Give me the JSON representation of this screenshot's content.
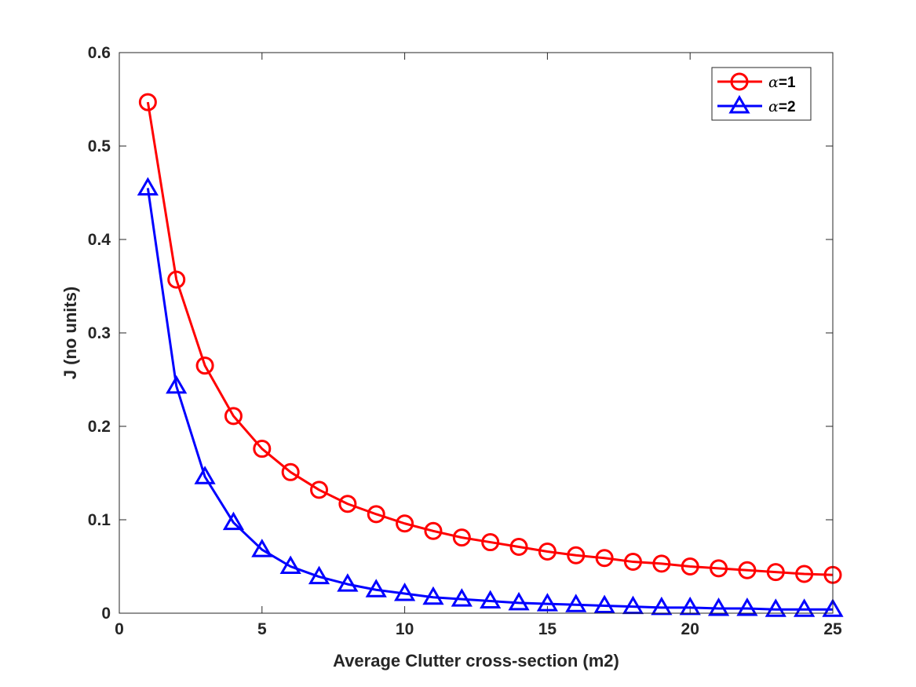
{
  "chart_data": {
    "type": "line",
    "title": "",
    "xlabel": "Average Clutter cross-section (m2)",
    "ylabel": "J (no units)",
    "xlim": [
      0,
      25
    ],
    "ylim": [
      0,
      0.6
    ],
    "xticks": [
      0,
      5,
      10,
      15,
      20,
      25
    ],
    "yticks": [
      0,
      0.1,
      0.2,
      0.3,
      0.4,
      0.5,
      0.6
    ],
    "xtick_labels": [
      "0",
      "5",
      "10",
      "15",
      "20",
      "25"
    ],
    "ytick_labels": [
      "0",
      "0.1",
      "0.2",
      "0.3",
      "0.4",
      "0.5",
      "0.6"
    ],
    "grid": false,
    "legend_position": "top-right",
    "x": [
      1,
      2,
      3,
      4,
      5,
      6,
      7,
      8,
      9,
      10,
      11,
      12,
      13,
      14,
      15,
      16,
      17,
      18,
      19,
      20,
      21,
      22,
      23,
      24,
      25
    ],
    "series": [
      {
        "name": "α=1",
        "legend_symbol": "α",
        "legend_suffix": "=1",
        "color": "#ff0000",
        "marker": "circle",
        "values": [
          0.547,
          0.357,
          0.265,
          0.211,
          0.176,
          0.151,
          0.132,
          0.117,
          0.106,
          0.096,
          0.088,
          0.081,
          0.076,
          0.071,
          0.066,
          0.062,
          0.059,
          0.055,
          0.053,
          0.05,
          0.048,
          0.046,
          0.044,
          0.042,
          0.041
        ]
      },
      {
        "name": "α=2",
        "legend_symbol": "α",
        "legend_suffix": "=2",
        "color": "#0000ff",
        "marker": "triangle",
        "values": [
          0.455,
          0.243,
          0.146,
          0.097,
          0.068,
          0.05,
          0.039,
          0.031,
          0.025,
          0.021,
          0.017,
          0.015,
          0.013,
          0.011,
          0.01,
          0.009,
          0.008,
          0.007,
          0.006,
          0.006,
          0.005,
          0.005,
          0.004,
          0.004,
          0.004
        ]
      }
    ]
  }
}
